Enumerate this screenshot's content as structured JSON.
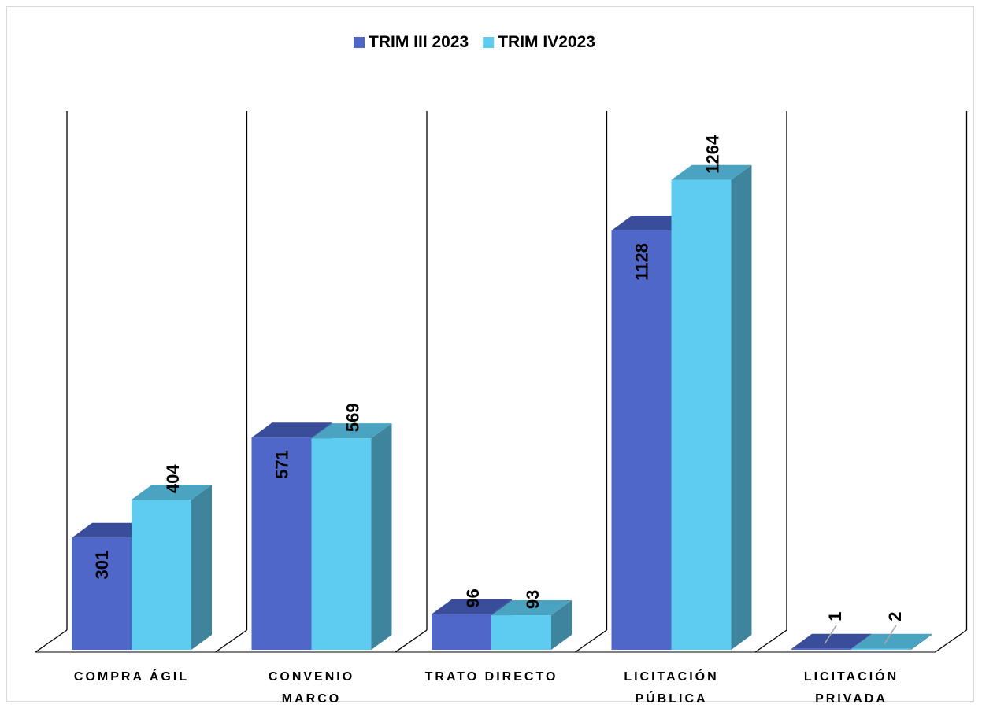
{
  "chart_data": {
    "type": "bar",
    "categories": [
      [
        "COMPRA ÁGIL"
      ],
      [
        "CONVENIO",
        "MARCO"
      ],
      [
        "TRATO DIRECTO"
      ],
      [
        "LICITACIÓN",
        "PÚBLICA"
      ],
      [
        "LICITACIÓN",
        "PRIVADA"
      ]
    ],
    "series": [
      {
        "name": "TRIM III 2023",
        "values": [
          301,
          571,
          96,
          1128,
          1
        ],
        "color": "#4f67c8",
        "top_color": "#3a4d9a",
        "side_color": "#3a4d9a"
      },
      {
        "name": "TRIM IV2023",
        "values": [
          404,
          569,
          93,
          1264,
          2
        ],
        "color": "#5ecbf0",
        "top_color": "#4aa3c1",
        "side_color": "#3e849c"
      }
    ],
    "ylim": [
      0,
      1400
    ],
    "legend_position": "top-center",
    "grid": false,
    "three_d": true,
    "data_labels": true
  }
}
